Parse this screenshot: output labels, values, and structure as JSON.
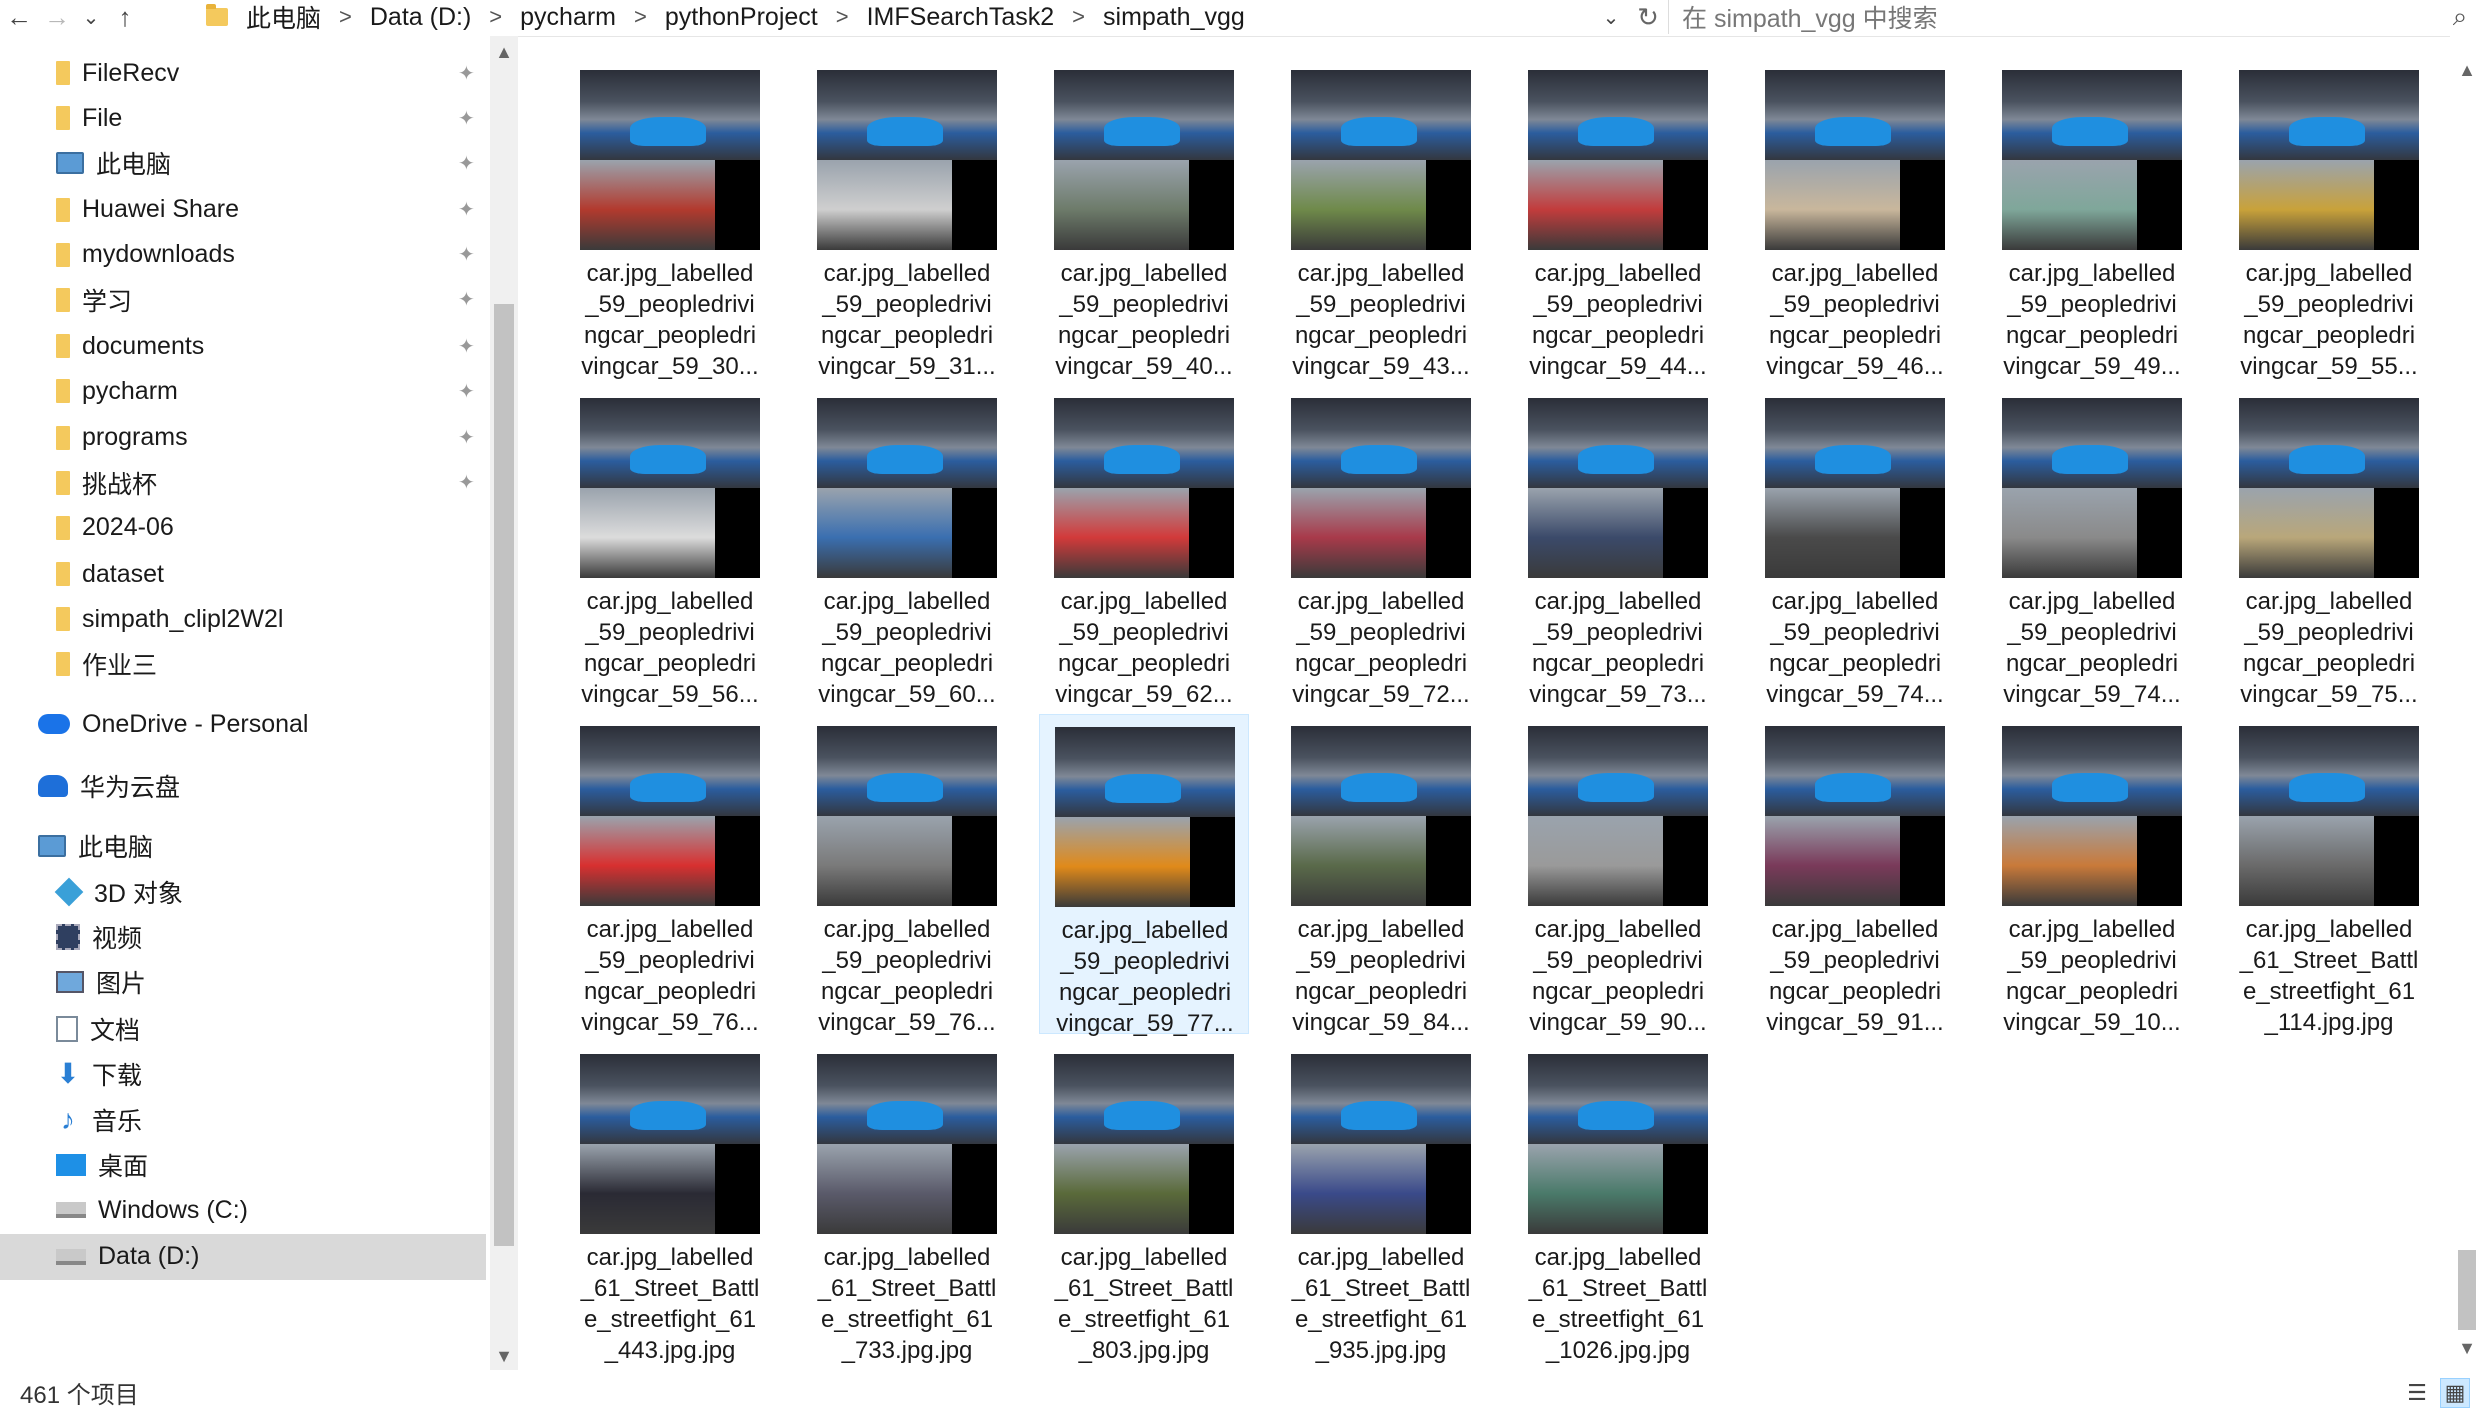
{
  "address": {
    "crumbs": [
      "此电脑",
      "Data (D:)",
      "pycharm",
      "pythonProject",
      "IMFSearchTask2",
      "simpath_vgg"
    ],
    "separator": ">",
    "search_placeholder": "在 simpath_vgg 中搜索"
  },
  "nav": {
    "back": "←",
    "forward": "→",
    "recent": "⌄",
    "up": "↑",
    "dropdown": "⌄",
    "refresh": "↻",
    "search": "⌕"
  },
  "sidebar": {
    "items": [
      {
        "label": "FileRecv",
        "icon": "folder-icon",
        "pinned": true
      },
      {
        "label": "File",
        "icon": "folder-icon",
        "pinned": true
      },
      {
        "label": "此电脑",
        "icon": "computer-icon",
        "pinned": true
      },
      {
        "label": "Huawei Share",
        "icon": "folder-icon",
        "pinned": true
      },
      {
        "label": "mydownloads",
        "icon": "folder-icon",
        "pinned": true
      },
      {
        "label": "学习",
        "icon": "folder-icon",
        "pinned": true
      },
      {
        "label": "documents",
        "icon": "folder-icon",
        "pinned": true
      },
      {
        "label": "pycharm",
        "icon": "folder-icon",
        "pinned": true
      },
      {
        "label": "programs",
        "icon": "folder-icon",
        "pinned": true
      },
      {
        "label": "挑战杯",
        "icon": "folder-icon",
        "pinned": true
      },
      {
        "label": "2024-06",
        "icon": "folder-icon",
        "pinned": false
      },
      {
        "label": "dataset",
        "icon": "folder-icon",
        "pinned": false
      },
      {
        "label": "simpath_clipl2W2l",
        "icon": "folder-icon",
        "pinned": false
      },
      {
        "label": "作业三",
        "icon": "folder-icon",
        "pinned": false
      },
      {
        "label": "OneDrive - Personal",
        "icon": "onedrive-icon",
        "pinned": false
      },
      {
        "label": "华为云盘",
        "icon": "huawei-cloud-icon",
        "pinned": false
      },
      {
        "label": "此电脑",
        "icon": "computer-icon",
        "pinned": false
      },
      {
        "label": "3D 对象",
        "icon": "3d-objects-icon",
        "pinned": false
      },
      {
        "label": "视频",
        "icon": "video-icon",
        "pinned": false
      },
      {
        "label": "图片",
        "icon": "pictures-icon",
        "pinned": false
      },
      {
        "label": "文档",
        "icon": "documents-icon",
        "pinned": false
      },
      {
        "label": "下载",
        "icon": "downloads-icon",
        "pinned": false
      },
      {
        "label": "音乐",
        "icon": "music-icon",
        "pinned": false
      },
      {
        "label": "桌面",
        "icon": "desktop-icon",
        "pinned": false
      },
      {
        "label": "Windows (C:)",
        "icon": "drive-icon",
        "pinned": false
      },
      {
        "label": "Data (D:)",
        "icon": "drive-icon",
        "pinned": false,
        "selected": true
      }
    ],
    "pin_glyph": "📌"
  },
  "files": [
    {
      "lines": [
        "car.jpg_labelled",
        "_59_peopledrivi",
        "ngcar_peopledri",
        "vingcar_59_30..."
      ],
      "bottom_color": "#b23a2e"
    },
    {
      "lines": [
        "car.jpg_labelled",
        "_59_peopledrivi",
        "ngcar_peopledri",
        "vingcar_59_31..."
      ],
      "bottom_color": "#cfcfcf"
    },
    {
      "lines": [
        "car.jpg_labelled",
        "_59_peopledrivi",
        "ngcar_peopledri",
        "vingcar_59_40..."
      ],
      "bottom_color": "#6d7b6a"
    },
    {
      "lines": [
        "car.jpg_labelled",
        "_59_peopledrivi",
        "ngcar_peopledri",
        "vingcar_59_43..."
      ],
      "bottom_color": "#6f8a4a"
    },
    {
      "lines": [
        "car.jpg_labelled",
        "_59_peopledrivi",
        "ngcar_peopledri",
        "vingcar_59_44..."
      ],
      "bottom_color": "#c23c3c"
    },
    {
      "lines": [
        "car.jpg_labelled",
        "_59_peopledrivi",
        "ngcar_peopledri",
        "vingcar_59_46..."
      ],
      "bottom_color": "#c9b79c"
    },
    {
      "lines": [
        "car.jpg_labelled",
        "_59_peopledrivi",
        "ngcar_peopledri",
        "vingcar_59_49..."
      ],
      "bottom_color": "#7fa79a"
    },
    {
      "lines": [
        "car.jpg_labelled",
        "_59_peopledrivi",
        "ngcar_peopledri",
        "vingcar_59_55..."
      ],
      "bottom_color": "#c9a23a"
    },
    {
      "lines": [
        "car.jpg_labelled",
        "_59_peopledrivi",
        "ngcar_peopledri",
        "vingcar_59_56..."
      ],
      "bottom_color": "#dcdcdc"
    },
    {
      "lines": [
        "car.jpg_labelled",
        "_59_peopledrivi",
        "ngcar_peopledri",
        "vingcar_59_60..."
      ],
      "bottom_color": "#3a6fb0"
    },
    {
      "lines": [
        "car.jpg_labelled",
        "_59_peopledrivi",
        "ngcar_peopledri",
        "vingcar_59_62..."
      ],
      "bottom_color": "#d23a3a"
    },
    {
      "lines": [
        "car.jpg_labelled",
        "_59_peopledrivi",
        "ngcar_peopledri",
        "vingcar_59_72..."
      ],
      "bottom_color": "#a83a4a"
    },
    {
      "lines": [
        "car.jpg_labelled",
        "_59_peopledrivi",
        "ngcar_peopledri",
        "vingcar_59_73..."
      ],
      "bottom_color": "#3b4a6a"
    },
    {
      "lines": [
        "car.jpg_labelled",
        "_59_peopledrivi",
        "ngcar_peopledri",
        "vingcar_59_74..."
      ],
      "bottom_color": "#4a4a4a"
    },
    {
      "lines": [
        "car.jpg_labelled",
        "_59_peopledrivi",
        "ngcar_peopledri",
        "vingcar_59_74..."
      ],
      "bottom_color": "#8a8a8a"
    },
    {
      "lines": [
        "car.jpg_labelled",
        "_59_peopledrivi",
        "ngcar_peopledri",
        "vingcar_59_75..."
      ],
      "bottom_color": "#b9a77a"
    },
    {
      "lines": [
        "car.jpg_labelled",
        "_59_peopledrivi",
        "ngcar_peopledri",
        "vingcar_59_76..."
      ],
      "bottom_color": "#d83030"
    },
    {
      "lines": [
        "car.jpg_labelled",
        "_59_peopledrivi",
        "ngcar_peopledri",
        "vingcar_59_76..."
      ],
      "bottom_color": "#7a7a7a"
    },
    {
      "lines": [
        "car.jpg_labelled",
        "_59_peopledrivi",
        "ngcar_peopledri",
        "vingcar_59_77..."
      ],
      "bottom_color": "#e08a1a",
      "selected": true
    },
    {
      "lines": [
        "car.jpg_labelled",
        "_59_peopledrivi",
        "ngcar_peopledri",
        "vingcar_59_84..."
      ],
      "bottom_color": "#5a6a4a"
    },
    {
      "lines": [
        "car.jpg_labelled",
        "_59_peopledrivi",
        "ngcar_peopledri",
        "vingcar_59_90..."
      ],
      "bottom_color": "#9a9a9a"
    },
    {
      "lines": [
        "car.jpg_labelled",
        "_59_peopledrivi",
        "ngcar_peopledri",
        "vingcar_59_91..."
      ],
      "bottom_color": "#7a3a5a"
    },
    {
      "lines": [
        "car.jpg_labelled",
        "_59_peopledrivi",
        "ngcar_peopledri",
        "vingcar_59_10..."
      ],
      "bottom_color": "#c97a3a"
    },
    {
      "lines": [
        "car.jpg_labelled",
        "_61_Street_Battl",
        "e_streetfight_61",
        "_114.jpg.jpg"
      ],
      "bottom_color": "#6a6a6a"
    },
    {
      "lines": [
        "car.jpg_labelled",
        "_61_Street_Battl",
        "e_streetfight_61",
        "_443.jpg.jpg"
      ],
      "bottom_color": "#2a2a34"
    },
    {
      "lines": [
        "car.jpg_labelled",
        "_61_Street_Battl",
        "e_streetfight_61",
        "_733.jpg.jpg"
      ],
      "bottom_color": "#5a5a6a"
    },
    {
      "lines": [
        "car.jpg_labelled",
        "_61_Street_Battl",
        "e_streetfight_61",
        "_803.jpg.jpg"
      ],
      "bottom_color": "#5a6a3a"
    },
    {
      "lines": [
        "car.jpg_labelled",
        "_61_Street_Battl",
        "e_streetfight_61",
        "_935.jpg.jpg"
      ],
      "bottom_color": "#3a4a8a"
    },
    {
      "lines": [
        "car.jpg_labelled",
        "_61_Street_Battl",
        "e_streetfight_61",
        "_1026.jpg.jpg"
      ],
      "bottom_color": "#4a7a6a"
    }
  ],
  "status": {
    "item_count": "461 个项目"
  },
  "views": {
    "details": "☰",
    "tiles": "▦"
  }
}
